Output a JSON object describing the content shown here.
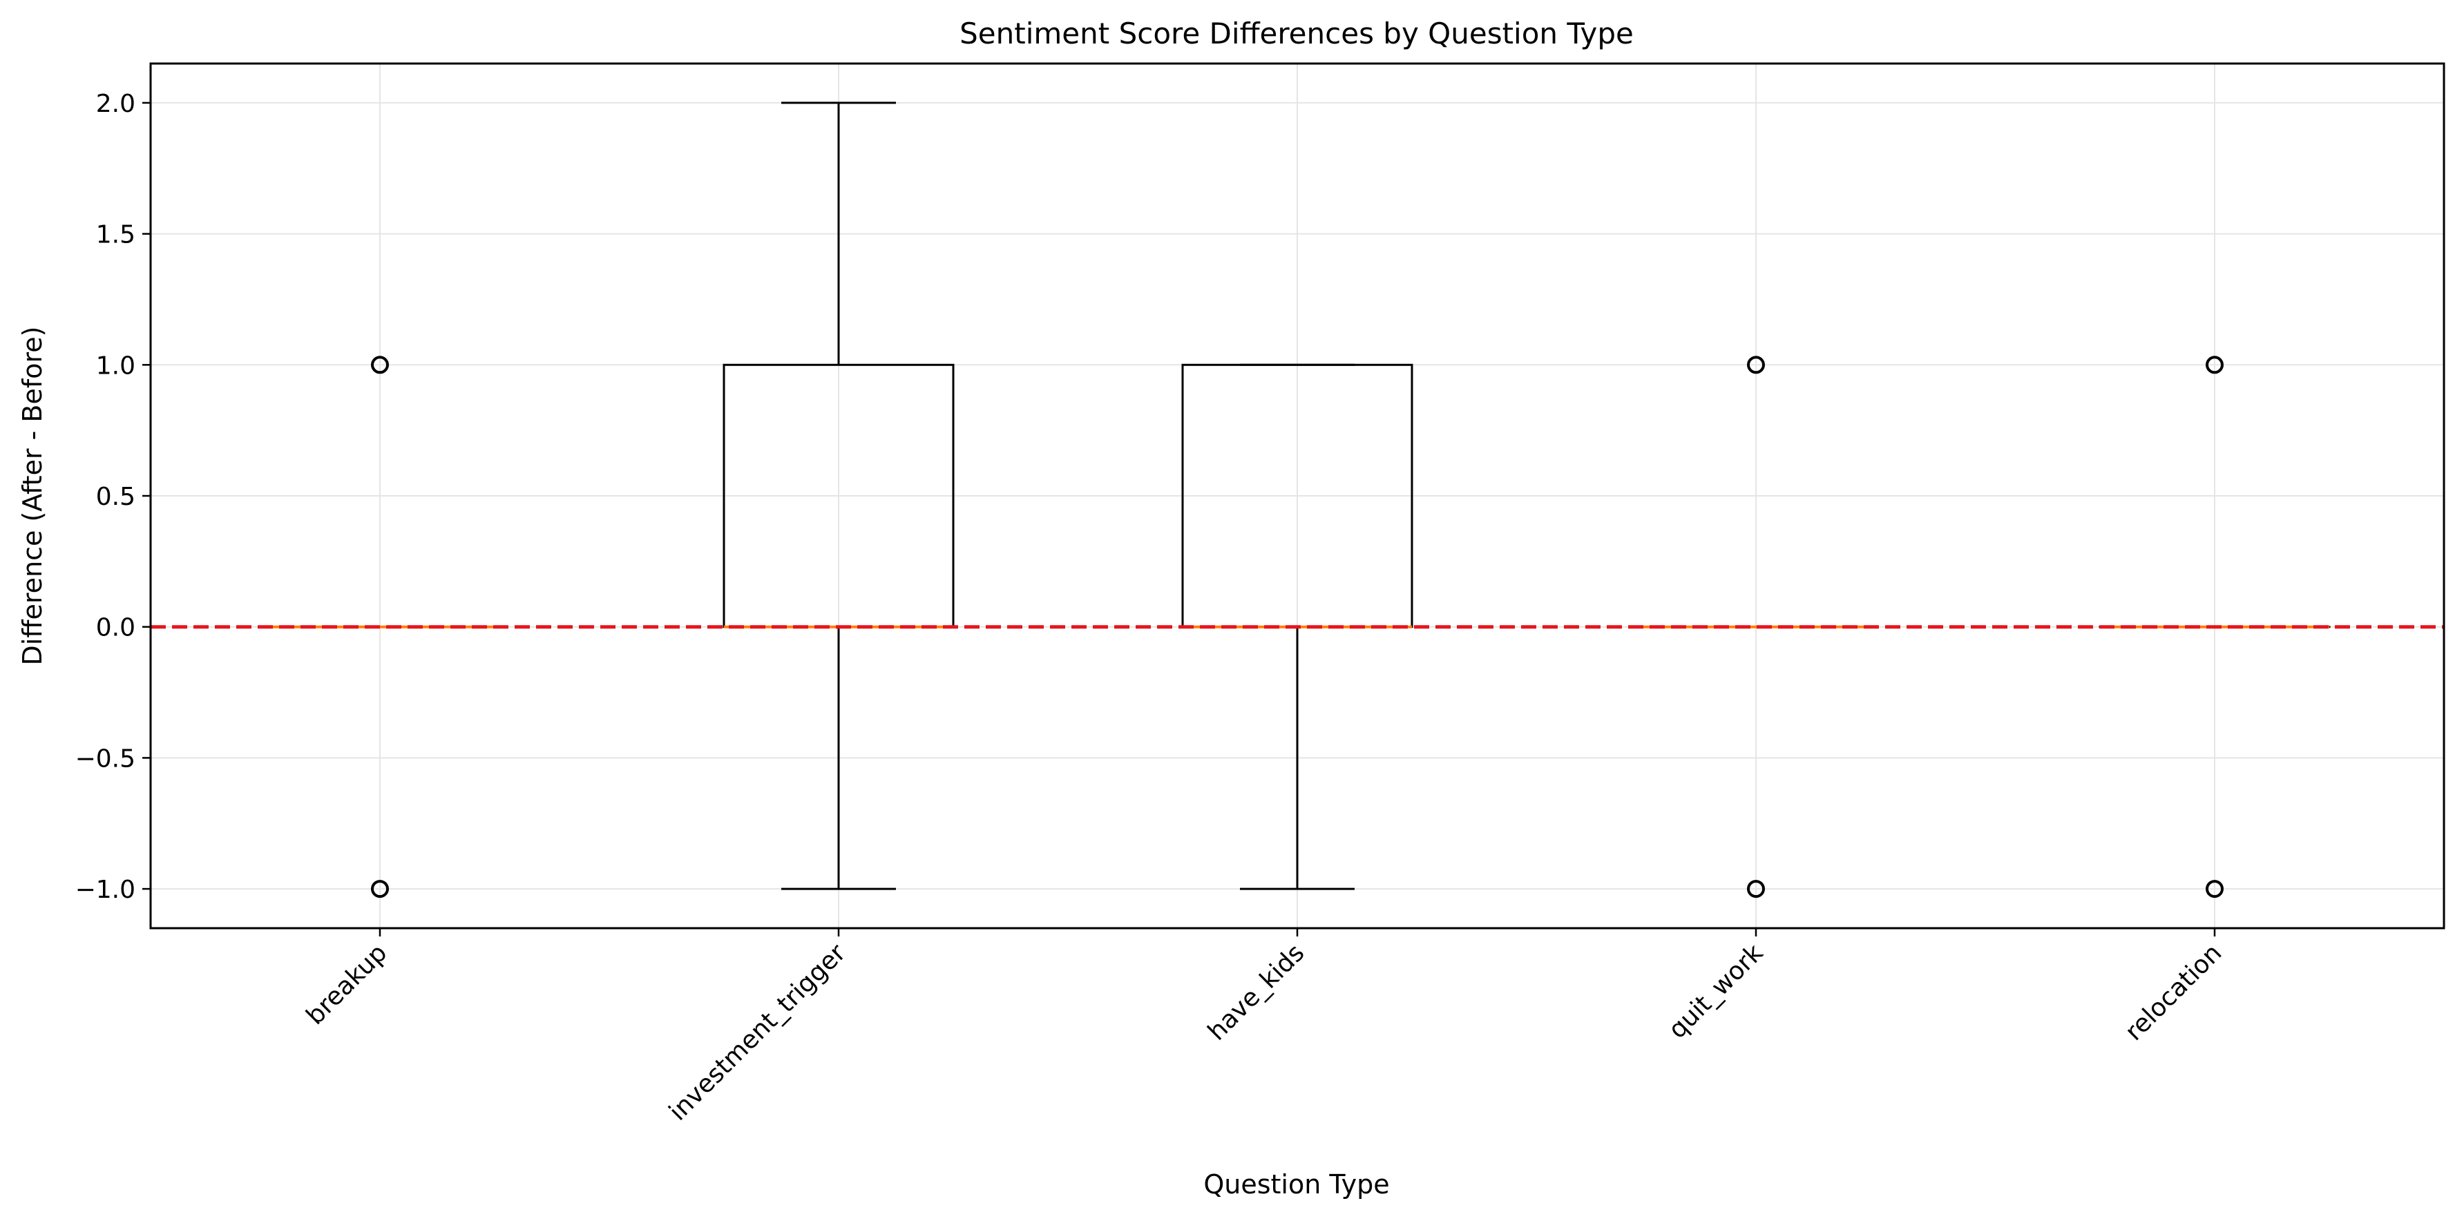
{
  "chart_data": {
    "type": "box",
    "title": "Sentiment Score Differences by Question Type",
    "xlabel": "Question Type",
    "ylabel": "Difference (After - Before)",
    "categories": [
      "breakup",
      "investment_trigger",
      "have_kids",
      "quit_work",
      "relocation"
    ],
    "ylim": [
      -1.15,
      2.15
    ],
    "yticks": [
      2.0,
      1.5,
      1.0,
      0.5,
      0.0,
      -0.5,
      -1.0
    ],
    "ytick_labels": [
      "2.0",
      "1.5",
      "1.0",
      "0.5",
      "0.0",
      "−0.5",
      "−1.0"
    ],
    "grid": true,
    "reference_line": {
      "y": 0.0,
      "color": "#e8141c",
      "style": "dashed"
    },
    "boxes": [
      {
        "category": "breakup",
        "whisker_low": 0,
        "q1": 0,
        "median": 0,
        "q3": 0,
        "whisker_high": 0,
        "outliers": [
          1,
          -1
        ]
      },
      {
        "category": "investment_trigger",
        "whisker_low": -1,
        "q1": 0,
        "median": 0,
        "q3": 1,
        "whisker_high": 2,
        "outliers": []
      },
      {
        "category": "have_kids",
        "whisker_low": -1,
        "q1": 0,
        "median": 0,
        "q3": 1,
        "whisker_high": 1,
        "outliers": []
      },
      {
        "category": "quit_work",
        "whisker_low": 0,
        "q1": 0,
        "median": 0,
        "q3": 0,
        "whisker_high": 0,
        "outliers": [
          1,
          -1
        ]
      },
      {
        "category": "relocation",
        "whisker_low": 0,
        "q1": 0,
        "median": 0,
        "q3": 0,
        "whisker_high": 0,
        "outliers": [
          1,
          -1
        ]
      }
    ],
    "colors": {
      "box": "#000000",
      "median": "#ff7f0e",
      "grid": "#e5e5e5"
    }
  }
}
